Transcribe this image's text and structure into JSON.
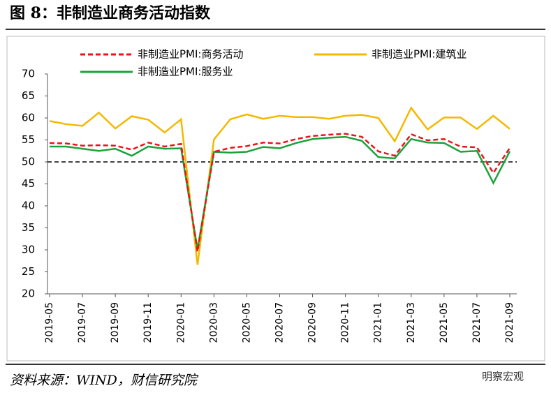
{
  "chart_data": {
    "type": "line",
    "title": "图 8：非制造业商务活动指数",
    "source": "资料来源：WIND，财信研究院",
    "watermark": "明察宏观",
    "categories": [
      "2019-05",
      null,
      "2019-07",
      null,
      "2019-09",
      null,
      "2019-11",
      null,
      "2020-01",
      null,
      "2020-03",
      null,
      "2020-05",
      null,
      "2020-07",
      null,
      "2020-09",
      null,
      "2020-11",
      null,
      "2021-01",
      null,
      "2021-03",
      null,
      "2021-05",
      null,
      "2021-07",
      null,
      "2021-09"
    ],
    "series": [
      {
        "name": "非制造业PMI:商务活动",
        "color": "#e8141b",
        "dash": true,
        "values": [
          54.3,
          54.2,
          53.7,
          53.8,
          53.7,
          52.8,
          54.4,
          53.5,
          54.1,
          29.6,
          52.3,
          53.2,
          53.6,
          54.4,
          54.2,
          55.2,
          55.9,
          56.2,
          56.4,
          55.7,
          52.4,
          51.4,
          56.3,
          54.9,
          55.2,
          53.5,
          53.3,
          47.5,
          53.2
        ]
      },
      {
        "name": "非制造业PMI:建筑业",
        "color": "#f5b800",
        "dash": false,
        "values": [
          59.3,
          58.6,
          58.2,
          61.2,
          57.6,
          60.4,
          59.6,
          56.7,
          59.7,
          26.6,
          55.1,
          59.7,
          60.8,
          59.8,
          60.5,
          60.2,
          60.2,
          59.8,
          60.5,
          60.7,
          60.0,
          54.7,
          62.3,
          57.4,
          60.1,
          60.1,
          57.5,
          60.5,
          57.5
        ]
      },
      {
        "name": "非制造业PMI:服务业",
        "color": "#1aa33a",
        "dash": false,
        "values": [
          53.5,
          53.5,
          53.0,
          52.5,
          53.0,
          51.4,
          53.5,
          53.0,
          53.1,
          30.1,
          52.3,
          52.1,
          52.3,
          53.4,
          53.1,
          54.3,
          55.2,
          55.5,
          55.7,
          54.8,
          51.1,
          50.8,
          55.2,
          54.4,
          54.3,
          52.3,
          52.5,
          45.2,
          52.4
        ]
      }
    ],
    "reference_line": 50,
    "ylim": [
      20,
      70
    ],
    "yticks": [
      20,
      25,
      30,
      35,
      40,
      45,
      50,
      55,
      60,
      65,
      70
    ]
  }
}
